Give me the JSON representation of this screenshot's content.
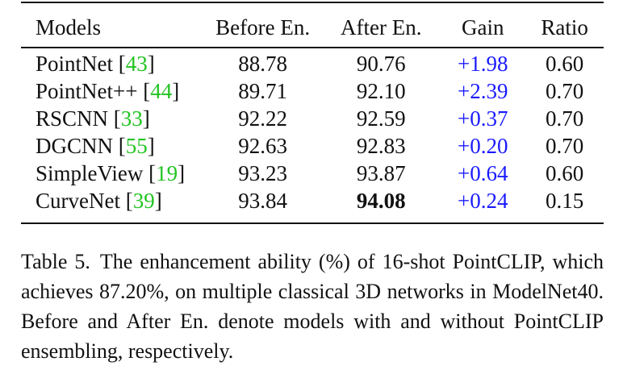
{
  "table": {
    "headers": [
      "Models",
      "Before En.",
      "After En.",
      "Gain",
      "Ratio"
    ],
    "rows": [
      {
        "model": "PointNet ",
        "cite": "43",
        "before": "88.78",
        "after": "90.76",
        "gain": "+1.98",
        "ratio": "0.60"
      },
      {
        "model": "PointNet++ ",
        "cite": "44",
        "before": "89.71",
        "after": "92.10",
        "gain": "+2.39",
        "ratio": "0.70"
      },
      {
        "model": "RSCNN ",
        "cite": "33",
        "before": "92.22",
        "after": "92.59",
        "gain": "+0.37",
        "ratio": "0.70"
      },
      {
        "model": "DGCNN ",
        "cite": "55",
        "before": "92.63",
        "after": "92.83",
        "gain": "+0.20",
        "ratio": "0.70"
      },
      {
        "model": "SimpleView ",
        "cite": "19",
        "before": "93.23",
        "after": "93.87",
        "gain": "+0.64",
        "ratio": "0.60"
      },
      {
        "model": "CurveNet ",
        "cite": "39",
        "before": "93.84",
        "after": "94.08",
        "gain": "+0.24",
        "ratio": "0.15"
      }
    ]
  },
  "caption": {
    "label": "Table 5.",
    "text": "The enhancement ability (%) of 16-shot PointCLIP, which achieves 87.20%, on multiple classical 3D networks in ModelNet40. Before and After En. denote models with and without PointCLIP ensembling, respectively."
  }
}
